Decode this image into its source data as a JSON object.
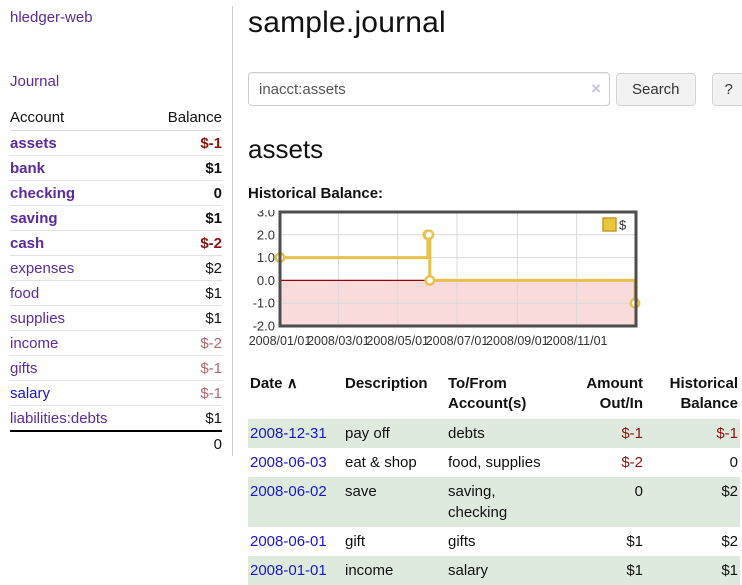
{
  "colors": {
    "link_purple": "#5b2aa0",
    "link_blue": "#1616d9",
    "negative_strong": "#8c1410",
    "negative_muted": "#b4666b",
    "row_stripe_green": "#dfeadf",
    "chart_line": "#e8c04a",
    "chart_marker_fill": "#ffffff",
    "chart_negative_fill": "#f9dbdb",
    "chart_zero_line": "#990000",
    "chart_grid": "#d9d9d9",
    "chart_border": "#4d4d4d",
    "legend_fill": "#eac63f",
    "legend_border": "#c9992c"
  },
  "sidebar": {
    "brand": "hledger-web",
    "journal_link": "Journal",
    "account_header": "Account",
    "balance_header": "Balance",
    "accounts": [
      {
        "name": "assets",
        "depth": 1,
        "balance": "$-1",
        "bold": true,
        "negative": "strong"
      },
      {
        "name": "bank",
        "depth": 2,
        "balance": "$1",
        "bold": true,
        "negative": "none"
      },
      {
        "name": "checking",
        "depth": 3,
        "balance": "0",
        "bold": true,
        "negative": "none"
      },
      {
        "name": "saving",
        "depth": 3,
        "balance": "$1",
        "bold": true,
        "negative": "none"
      },
      {
        "name": "cash",
        "depth": 2,
        "balance": "$-2",
        "bold": true,
        "negative": "strong"
      },
      {
        "name": "expenses",
        "depth": 1,
        "balance": "$2",
        "bold": false,
        "negative": "none"
      },
      {
        "name": "food",
        "depth": 2,
        "balance": "$1",
        "bold": false,
        "negative": "none"
      },
      {
        "name": "supplies",
        "depth": 2,
        "balance": "$1",
        "bold": false,
        "negative": "none"
      },
      {
        "name": "income",
        "depth": 1,
        "balance": "$-2",
        "bold": false,
        "negative": "muted"
      },
      {
        "name": "gifts",
        "depth": 2,
        "balance": "$-1",
        "bold": false,
        "negative": "muted"
      },
      {
        "name": "salary",
        "depth": 2,
        "balance": "$-1",
        "bold": false,
        "negative": "muted",
        "link_blue": true
      },
      {
        "name": "liabilities:debts",
        "depth": 1,
        "balance": "$1",
        "bold": false,
        "negative": "none"
      }
    ],
    "total": "0"
  },
  "main": {
    "title": "sample.journal",
    "search": {
      "value": "inacct:assets",
      "clear_icon": "×",
      "search_button": "Search",
      "help_button": "?"
    },
    "account_heading": "assets",
    "chart_label": "Historical Balance:"
  },
  "chart_data": {
    "type": "line",
    "style": "step-after",
    "title": "Historical Balance",
    "legend": [
      {
        "label": "$"
      }
    ],
    "legend_position": "top-right",
    "grid": true,
    "negative_region_shaded": true,
    "ylim": [
      -2,
      3
    ],
    "yticks": [
      {
        "v": 3,
        "label": "3.0"
      },
      {
        "v": 2,
        "label": "2.0"
      },
      {
        "v": 1,
        "label": "1.0"
      },
      {
        "v": 0,
        "label": "0.0"
      },
      {
        "v": -1,
        "label": "-1.0"
      },
      {
        "v": -2,
        "label": "-2.0"
      }
    ],
    "x_domain_days": [
      0,
      366
    ],
    "xticks": [
      {
        "day": 0,
        "label": "2008/01/01"
      },
      {
        "day": 60,
        "label": "2008/03/01"
      },
      {
        "day": 121,
        "label": "2008/05/01"
      },
      {
        "day": 182,
        "label": "2008/07/01"
      },
      {
        "day": 244,
        "label": "2008/09/01"
      },
      {
        "day": 305,
        "label": "2008/11/01"
      }
    ],
    "xgrid_days": [
      60,
      121,
      182,
      244,
      305,
      366
    ],
    "points": [
      {
        "date": "2008-01-01",
        "day": 0,
        "value": 1
      },
      {
        "date": "2008-06-01",
        "day": 152,
        "value": 2
      },
      {
        "date": "2008-06-02",
        "day": 153,
        "value": 2
      },
      {
        "date": "2008-06-03",
        "day": 154,
        "value": 0
      },
      {
        "date": "2008-12-31",
        "day": 365,
        "value": -1
      }
    ]
  },
  "table": {
    "sort_icon": "∧",
    "headers": {
      "date": "Date",
      "description": "Description",
      "accounts": "To/From Account(s)",
      "amount": "Amount Out/In",
      "balance": "Historical Balance"
    },
    "rows": [
      {
        "date": "2008-12-31",
        "description": "pay off",
        "accounts": "debts",
        "amount": "$-1",
        "amount_negative": true,
        "balance": "$-1",
        "balance_negative": true
      },
      {
        "date": "2008-06-03",
        "description": "eat & shop",
        "accounts": "food, supplies",
        "amount": "$-2",
        "amount_negative": true,
        "balance": "0",
        "balance_negative": false
      },
      {
        "date": "2008-06-02",
        "description": "save",
        "accounts": "saving, checking",
        "amount": "0",
        "amount_negative": false,
        "balance": "$2",
        "balance_negative": false
      },
      {
        "date": "2008-06-01",
        "description": "gift",
        "accounts": "gifts",
        "amount": "$1",
        "amount_negative": false,
        "balance": "$2",
        "balance_negative": false
      },
      {
        "date": "2008-01-01",
        "description": "income",
        "accounts": "salary",
        "amount": "$1",
        "amount_negative": false,
        "balance": "$1",
        "balance_negative": false
      }
    ]
  }
}
